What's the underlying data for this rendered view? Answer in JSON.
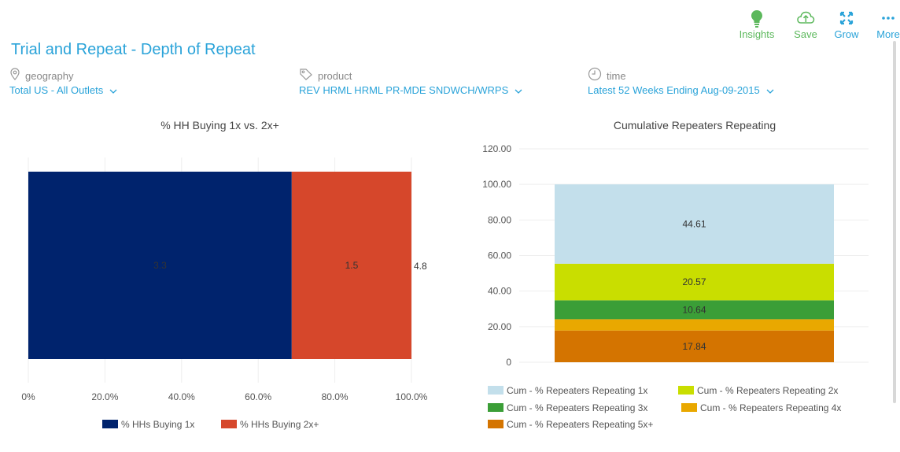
{
  "toolbar": {
    "insights_label": "Insights",
    "save_label": "Save",
    "grow_label": "Grow",
    "more_label": "More",
    "icons": [
      "lightbulb-icon",
      "cloud-upload-icon",
      "expand-icon",
      "more-dots-icon"
    ]
  },
  "page": {
    "title": "Trial and Repeat - Depth of Repeat"
  },
  "filters": {
    "geography": {
      "label": "geography",
      "value": "Total US - All Outlets"
    },
    "product": {
      "label": "product",
      "value": "REV HRML HRML PR-MDE SNDWCH/WRPS"
    },
    "time": {
      "label": "time",
      "value": "Latest 52 Weeks Ending Aug-09-2015"
    }
  },
  "colors": {
    "accent": "#2aa3d9",
    "green": "#5cb85c",
    "hh_1x": "#00236d",
    "hh_2x": "#d6472b",
    "rep_1x": "#c3dfeb",
    "rep_2x": "#c9de00",
    "rep_3x": "#3b9e37",
    "rep_4x": "#e9a800",
    "rep_5x": "#d47400"
  },
  "chart_data": [
    {
      "type": "bar",
      "orientation": "horizontal",
      "stacked": true,
      "percent": true,
      "title": "% HH Buying 1x vs. 2x+",
      "series": [
        {
          "name": "% HHs Buying 1x",
          "value": 3.3
        },
        {
          "name": "% HHs Buying 2x+",
          "value": 1.5
        }
      ],
      "total_label": "4.8",
      "value_labels": [
        "3.3",
        "1.5"
      ],
      "xlim": [
        0,
        100
      ],
      "x_ticks": [
        "0%",
        "20.0%",
        "40.0%",
        "60.0%",
        "80.0%",
        "100.0%"
      ],
      "grid": true,
      "legend": "bottom"
    },
    {
      "type": "bar",
      "stacked": true,
      "title": "Cumulative Repeaters Repeating",
      "ylim": [
        0,
        120
      ],
      "y_ticks": [
        "0",
        "20.00",
        "40.00",
        "60.00",
        "80.00",
        "100.00",
        "120.00"
      ],
      "series": [
        {
          "name": "Cum - % Repeaters Repeating 1x",
          "value": 44.61,
          "label": "44.61"
        },
        {
          "name": "Cum - % Repeaters Repeating 2x",
          "value": 20.57,
          "label": "20.57"
        },
        {
          "name": "Cum - % Repeaters Repeating 3x",
          "value": 10.64,
          "label": "10.64"
        },
        {
          "name": "Cum - % Repeaters Repeating 4x",
          "value": 6.34,
          "label": ""
        },
        {
          "name": "Cum - % Repeaters Repeating 5x+",
          "value": 17.84,
          "label": "17.84"
        }
      ],
      "grid": true,
      "legend": "bottom"
    }
  ]
}
